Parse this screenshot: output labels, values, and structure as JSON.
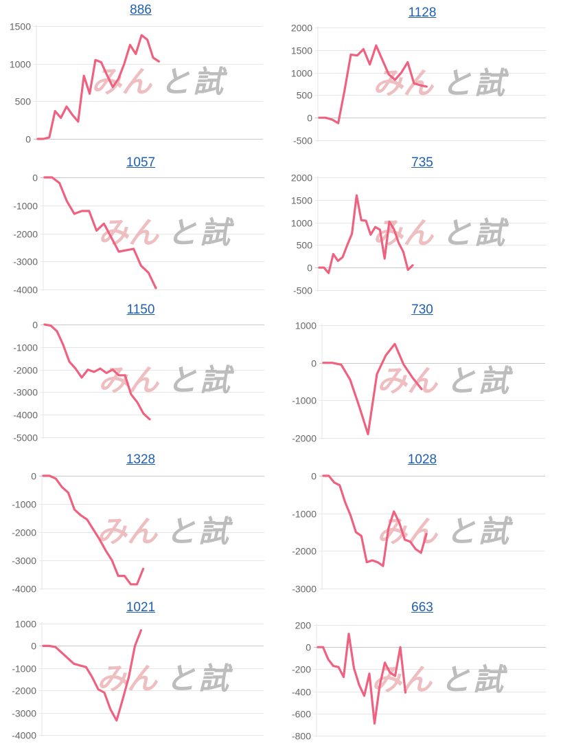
{
  "watermark": [
    "みん",
    "と",
    "試"
  ],
  "colors": {
    "line": "#f0617f",
    "grid": "#e6e6e6",
    "zero": "#c8c8c8",
    "title": "#1f5fae"
  },
  "chart_data": [
    {
      "type": "line",
      "title": "886",
      "yticks": [
        "1500",
        "1000",
        "500",
        "0"
      ],
      "ylim": [
        0,
        1500
      ],
      "values": [
        0,
        0,
        20,
        370,
        280,
        430,
        320,
        230,
        840,
        600,
        1050,
        1020,
        850,
        690,
        800,
        1000,
        1250,
        1130,
        1380,
        1320,
        1080,
        1030
      ]
    },
    {
      "type": "line",
      "title": "1128",
      "yticks": [
        "2000",
        "1500",
        "1000",
        "500",
        "0",
        "-500"
      ],
      "ylim": [
        -500,
        2000
      ],
      "values": [
        0,
        0,
        -40,
        -120,
        600,
        1400,
        1380,
        1520,
        1180,
        1600,
        1280,
        960,
        840,
        1000,
        1230,
        760,
        720,
        690
      ]
    },
    {
      "type": "line",
      "title": "1057",
      "yticks": [
        "0",
        "-1000",
        "-2000",
        "-3000",
        "-4000"
      ],
      "ylim": [
        -4000,
        0
      ],
      "values": [
        0,
        0,
        -200,
        -850,
        -1300,
        -1200,
        -1200,
        -1900,
        -1650,
        -2150,
        -2650,
        -2600,
        -2550,
        -3150,
        -3400,
        -3950
      ]
    },
    {
      "type": "line",
      "title": "735",
      "yticks": [
        "2000",
        "1500",
        "1000",
        "500",
        "0",
        "-500"
      ],
      "ylim": [
        -500,
        2000
      ],
      "values": [
        0,
        0,
        -120,
        300,
        150,
        230,
        500,
        750,
        1600,
        1050,
        1040,
        730,
        900,
        840,
        200,
        1020,
        850,
        550,
        350,
        -50,
        50
      ]
    },
    {
      "type": "line",
      "title": "1150",
      "yticks": [
        "0",
        "-1000",
        "-2000",
        "-3000",
        "-4000",
        "-5000"
      ],
      "ylim": [
        -5000,
        0
      ],
      "values": [
        0,
        -50,
        -300,
        -900,
        -1650,
        -1950,
        -2350,
        -2000,
        -2100,
        -1950,
        -2150,
        -2000,
        -2250,
        -2250,
        -3100,
        -3450,
        -3950,
        -4200
      ]
    },
    {
      "type": "line",
      "title": "730",
      "yticks": [
        "1000",
        "0",
        "-1000",
        "-2000"
      ],
      "ylim": [
        -2000,
        1000
      ],
      "values": [
        0,
        0,
        -50,
        -450,
        -1150,
        -1900,
        -300,
        200,
        500,
        -50,
        -400,
        -700
      ]
    },
    {
      "type": "line",
      "title": "1328",
      "yticks": [
        "0",
        "-1000",
        "-2000",
        "-3000",
        "-4000"
      ],
      "ylim": [
        -4000,
        0
      ],
      "values": [
        0,
        0,
        -100,
        -400,
        -600,
        -1200,
        -1400,
        -1550,
        -1900,
        -2250,
        -2650,
        -3000,
        -3550,
        -3550,
        -3850,
        -3850,
        -3300
      ]
    },
    {
      "type": "line",
      "title": "1028",
      "yticks": [
        "0",
        "-1000",
        "-2000",
        "-3000"
      ],
      "ylim": [
        -3000,
        0
      ],
      "values": [
        0,
        0,
        -180,
        -250,
        -700,
        -1050,
        -1500,
        -1600,
        -2300,
        -2250,
        -2300,
        -2400,
        -1400,
        -950,
        -1250,
        -1700,
        -1750,
        -1950,
        -2050,
        -1550
      ]
    },
    {
      "type": "line",
      "title": "1021",
      "yticks": [
        "1000",
        "0",
        "-1000",
        "-2000",
        "-3000",
        "-4000"
      ],
      "ylim": [
        -4000,
        1000
      ],
      "values": [
        0,
        0,
        -50,
        -300,
        -550,
        -800,
        -880,
        -950,
        -1400,
        -1950,
        -2100,
        -2850,
        -3350,
        -2400,
        -1400,
        0,
        700
      ]
    },
    {
      "type": "line",
      "title": "663",
      "yticks": [
        "200",
        "0",
        "-200",
        "-400",
        "-600",
        "-800"
      ],
      "ylim": [
        -800,
        200
      ],
      "values": [
        0,
        0,
        -110,
        -170,
        -180,
        -270,
        120,
        -190,
        -340,
        -440,
        -240,
        -690,
        -350,
        -140,
        -230,
        -260,
        0,
        -410
      ]
    }
  ]
}
